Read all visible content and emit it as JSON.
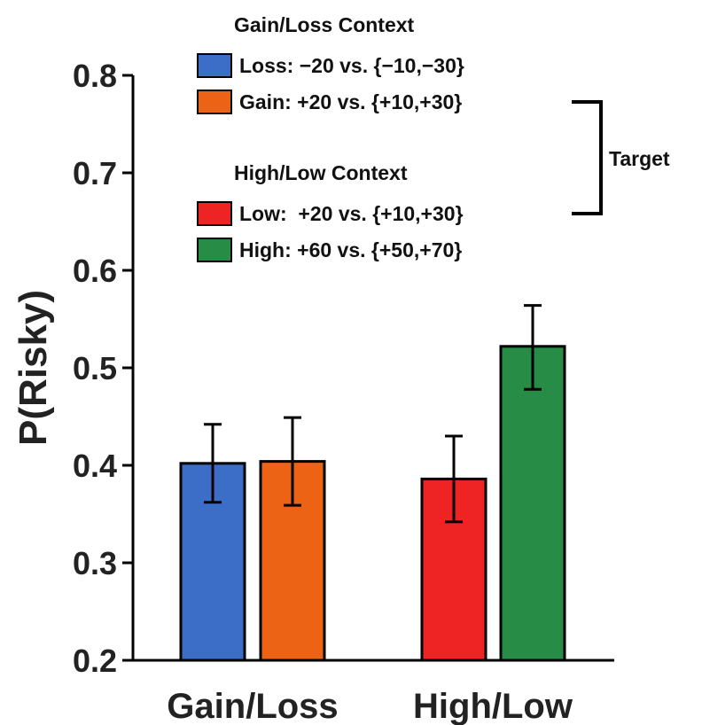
{
  "chart_data": {
    "type": "bar",
    "ylabel": "P(Risky)",
    "ylim": [
      0.2,
      0.8
    ],
    "yticks": [
      "0.2",
      "0.3",
      "0.4",
      "0.5",
      "0.6",
      "0.7",
      "0.8"
    ],
    "categories": [
      "Gain/Loss",
      "High/Low"
    ],
    "bars": [
      {
        "category": "Gain/Loss",
        "series": "Loss",
        "value": 0.402,
        "error_low": 0.362,
        "error_high": 0.442,
        "color": "#3c6ec8"
      },
      {
        "category": "Gain/Loss",
        "series": "Gain",
        "value": 0.404,
        "error_low": 0.359,
        "error_high": 0.449,
        "color": "#ec6316"
      },
      {
        "category": "High/Low",
        "series": "Low",
        "value": 0.386,
        "error_low": 0.342,
        "error_high": 0.43,
        "color": "#ee2424"
      },
      {
        "category": "High/Low",
        "series": "High",
        "value": 0.522,
        "error_low": 0.478,
        "error_high": 0.564,
        "color": "#278c45"
      }
    ],
    "legend": {
      "groups": [
        {
          "title": "Gain/Loss Context",
          "items": [
            {
              "label": "Loss: −20 vs. {−10,−30}",
              "color": "#3c6ec8"
            },
            {
              "label": "Gain: +20 vs. {+10,+30}",
              "color": "#ec6316"
            }
          ]
        },
        {
          "title": "High/Low Context",
          "items": [
            {
              "label": "Low:  +20 vs. {+10,+30}",
              "color": "#ee2424"
            },
            {
              "label": "High: +60 vs. {+50,+70}",
              "color": "#278c45"
            }
          ]
        }
      ],
      "bracket_label": "Target",
      "placement": "top"
    },
    "grid": false
  }
}
